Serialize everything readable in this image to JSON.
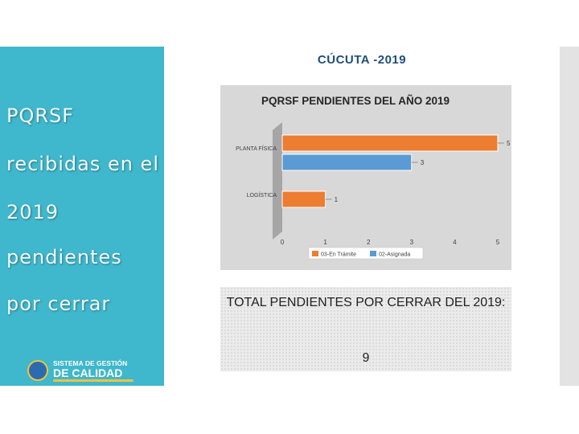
{
  "slide": {
    "header": "CÚCUTA -2019",
    "sidebar_lines": [
      "PQRSF",
      "recibidas en el",
      "2019",
      "pendientes",
      "por cerrar"
    ],
    "logo": {
      "line1": "SISTEMA DE GESTIÓN",
      "line2": "DE CALIDAD"
    },
    "total_label": "TOTAL PENDIENTES POR CERRAR DEL 2019:",
    "total_value": "9",
    "colors": {
      "sidebar": "#3fb7cc",
      "header_text": "#1f4e79"
    }
  },
  "chart_data": {
    "type": "bar",
    "orientation": "horizontal",
    "title": "PQRSF PENDIENTES DEL AÑO 2019",
    "categories": [
      "PLANTA FÍSICA",
      "LOGÍSTICA"
    ],
    "series": [
      {
        "name": "03-En Trámite",
        "color": "#ed7d31",
        "values": [
          5,
          1
        ]
      },
      {
        "name": "02-Asignada",
        "color": "#5b9bd5",
        "values": [
          3,
          null
        ]
      }
    ],
    "data_labels": [
      [
        "5",
        "3"
      ],
      [
        "1",
        ""
      ]
    ],
    "xlim": [
      0,
      5
    ],
    "ticks": [
      0,
      1,
      2,
      3,
      4,
      5
    ],
    "legend": "bottom-right",
    "xlabel": "",
    "ylabel": ""
  }
}
